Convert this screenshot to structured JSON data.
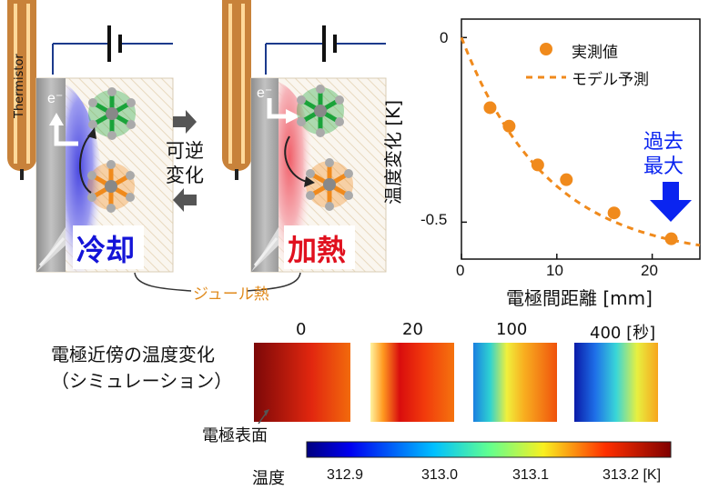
{
  "cell_left": {
    "thermistor_label": "Thermistor",
    "electron_label": "e⁻",
    "mode_label": "冷却"
  },
  "cell_right": {
    "electron_label": "e⁻",
    "mode_label": "加熱"
  },
  "reversible_label_1": "可逆",
  "reversible_label_2": "変化",
  "joule_label": "ジュール熱",
  "colors": {
    "cooling_blue": "#1414d8",
    "heating_red": "#e0101e",
    "orange": "#f08a1c",
    "green_molecule": "#1aa33a"
  },
  "chart_data": {
    "type": "scatter",
    "xlabel": "電極間距離 [mm]",
    "ylabel": "温度変化 [K]",
    "xlim": [
      0,
      25
    ],
    "ylim": [
      -0.6,
      0.05
    ],
    "x_ticks": [
      "0",
      "10",
      "20"
    ],
    "y_ticks": [
      "0",
      "-0.5"
    ],
    "series": [
      {
        "name": "実測値",
        "style": "markers",
        "points": [
          [
            3,
            -0.19
          ],
          [
            5,
            -0.24
          ],
          [
            8,
            -0.345
          ],
          [
            11,
            -0.385
          ],
          [
            16,
            -0.475
          ],
          [
            22,
            -0.545
          ]
        ]
      },
      {
        "name": "モデル予測",
        "style": "dashed",
        "model": "exponential",
        "params": {
          "amplitude": -0.6,
          "decay_mm": 9
        }
      }
    ],
    "annotation": "過去\n最大"
  },
  "simulation": {
    "title_line1": "電極近傍の温度変化",
    "title_line2": "（シミュレーション）",
    "time_labels": [
      "0",
      "20",
      "100",
      "400 [秒]"
    ],
    "surface_label": "電極表面",
    "colorbar_label": "温度",
    "colorbar_ticks": [
      "312.9",
      "313.0",
      "313.1",
      "313.2 [K]"
    ]
  }
}
